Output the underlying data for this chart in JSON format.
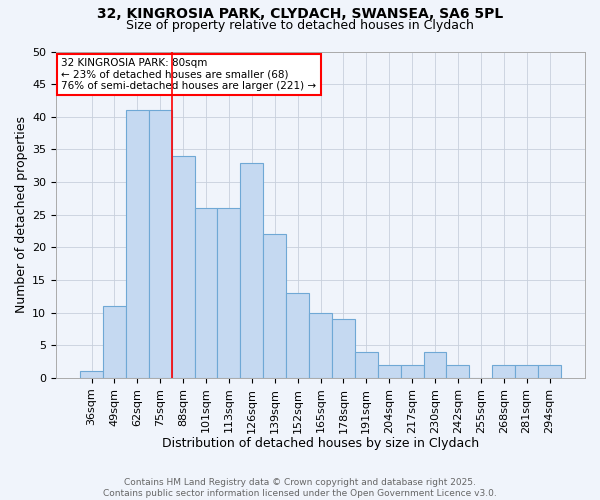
{
  "title1": "32, KINGROSIA PARK, CLYDACH, SWANSEA, SA6 5PL",
  "title2": "Size of property relative to detached houses in Clydach",
  "xlabel": "Distribution of detached houses by size in Clydach",
  "ylabel": "Number of detached properties",
  "categories": [
    "36sqm",
    "49sqm",
    "62sqm",
    "75sqm",
    "88sqm",
    "101sqm",
    "113sqm",
    "126sqm",
    "139sqm",
    "152sqm",
    "165sqm",
    "178sqm",
    "191sqm",
    "204sqm",
    "217sqm",
    "230sqm",
    "242sqm",
    "255sqm",
    "268sqm",
    "281sqm",
    "294sqm"
  ],
  "values": [
    1,
    11,
    41,
    41,
    34,
    26,
    26,
    33,
    22,
    13,
    10,
    9,
    4,
    2,
    2,
    4,
    2,
    0,
    2,
    2,
    2
  ],
  "bar_color": "#c5d9f1",
  "bar_edge_color": "#6fa8d5",
  "red_line_x": 3,
  "annotation_text": "32 KINGROSIA PARK: 80sqm\n← 23% of detached houses are smaller (68)\n76% of semi-detached houses are larger (221) →",
  "annotation_box_color": "white",
  "annotation_box_edge_color": "red",
  "ylim": [
    0,
    50
  ],
  "yticks": [
    0,
    5,
    10,
    15,
    20,
    25,
    30,
    35,
    40,
    45,
    50
  ],
  "footer1": "Contains HM Land Registry data © Crown copyright and database right 2025.",
  "footer2": "Contains public sector information licensed under the Open Government Licence v3.0.",
  "bg_color": "#f0f4fb",
  "grid_color": "#c8d0dc",
  "title1_fontsize": 10,
  "title2_fontsize": 9,
  "xlabel_fontsize": 9,
  "ylabel_fontsize": 9,
  "tick_fontsize": 8,
  "footer_fontsize": 6.5
}
